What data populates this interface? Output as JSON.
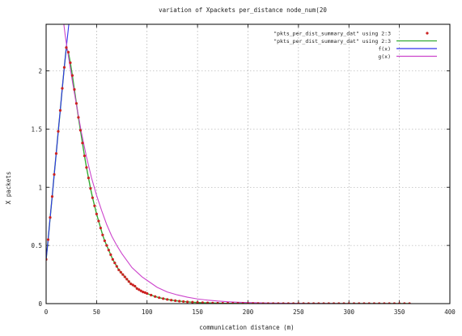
{
  "chart_data": {
    "type": "line",
    "title": "variation of Xpackets per_distance node_num(20",
    "xlabel": "communication distance (m)",
    "ylabel": "X packets",
    "xlim": [
      0,
      400
    ],
    "ylim": [
      0,
      2.4
    ],
    "xticks": [
      "0",
      "50",
      "100",
      "150",
      "200",
      "250",
      "300",
      "350",
      "400"
    ],
    "yticks": [
      "0",
      "0.5",
      "1",
      "1.5",
      "2"
    ],
    "grid": true,
    "legend_position": "top-right",
    "series": [
      {
        "name": "\"pkts_per_dist_summary_dat\" using 2:3",
        "style": "points",
        "color": "#cc2222",
        "x": [
          0,
          2,
          4,
          6,
          8,
          10,
          12,
          14,
          16,
          18,
          20,
          22,
          24,
          26,
          28,
          30,
          32,
          34,
          36,
          38,
          40,
          42,
          44,
          46,
          48,
          50,
          52,
          54,
          56,
          58,
          60,
          62,
          64,
          66,
          68,
          70,
          72,
          74,
          76,
          78,
          80,
          82,
          84,
          86,
          88,
          90,
          92,
          94,
          96,
          98,
          100,
          104,
          108,
          112,
          116,
          120,
          124,
          128,
          132,
          136,
          140,
          145,
          150,
          155,
          160,
          165,
          170,
          175,
          180,
          185,
          190,
          195,
          200,
          205,
          210,
          215,
          220,
          225,
          230,
          235,
          240,
          245,
          250,
          255,
          260,
          265,
          270,
          275,
          280,
          285,
          290,
          295,
          300,
          305,
          310,
          315,
          320,
          325,
          330,
          335,
          340,
          345,
          350,
          355,
          360
        ],
        "y": [
          0.38,
          0.55,
          0.74,
          0.92,
          1.11,
          1.29,
          1.48,
          1.66,
          1.85,
          2.03,
          2.2,
          2.16,
          2.07,
          1.96,
          1.84,
          1.72,
          1.6,
          1.49,
          1.38,
          1.27,
          1.17,
          1.08,
          0.99,
          0.91,
          0.84,
          0.77,
          0.71,
          0.65,
          0.59,
          0.54,
          0.5,
          0.46,
          0.42,
          0.38,
          0.35,
          0.32,
          0.29,
          0.27,
          0.25,
          0.23,
          0.21,
          0.19,
          0.17,
          0.16,
          0.15,
          0.13,
          0.12,
          0.11,
          0.1,
          0.095,
          0.087,
          0.073,
          0.061,
          0.051,
          0.043,
          0.036,
          0.03,
          0.025,
          0.021,
          0.018,
          0.015,
          0.012,
          0.0095,
          0.0076,
          0.0061,
          0.0049,
          0.0039,
          0.0031,
          0.0025,
          0.002,
          0.0016,
          0.0013,
          0.001,
          0.0008,
          0.0007,
          0.0005,
          0.0004,
          0.0003,
          0.0003,
          0.0002,
          0.0002,
          0.0001,
          0.0001,
          0.0001,
          0.0001,
          0,
          0,
          0,
          0,
          0,
          0,
          0,
          0,
          0,
          0,
          0,
          0,
          0,
          0,
          0,
          0,
          0,
          0,
          0,
          0
        ]
      },
      {
        "name": "\"pkts_per_dist_summary_dat\" using 2:3",
        "style": "lines",
        "color": "#33aa33",
        "x": [
          0,
          2,
          4,
          6,
          8,
          10,
          12,
          14,
          16,
          18,
          20,
          22,
          24,
          26,
          28,
          30,
          32,
          34,
          36,
          38,
          40,
          42,
          44,
          46,
          48,
          50,
          52,
          54,
          56,
          58,
          60,
          62,
          64,
          66,
          68,
          70,
          72,
          74,
          76,
          78,
          80,
          82,
          84,
          86,
          88,
          90,
          92,
          94,
          96,
          98,
          100,
          104,
          108,
          112,
          116,
          120,
          124,
          128,
          132,
          136,
          140,
          145,
          150,
          155,
          160,
          165,
          170,
          175,
          180,
          185,
          190,
          195,
          200,
          205,
          210,
          215,
          220,
          225,
          230,
          235,
          240,
          245,
          250,
          255,
          260,
          265,
          270,
          275,
          280,
          285,
          290,
          295,
          300,
          305,
          310,
          315,
          320,
          325,
          330,
          335,
          340,
          345,
          350,
          355,
          360
        ],
        "y": [
          0.38,
          0.55,
          0.74,
          0.92,
          1.11,
          1.29,
          1.48,
          1.66,
          1.85,
          2.03,
          2.2,
          2.16,
          2.07,
          1.96,
          1.84,
          1.72,
          1.6,
          1.49,
          1.38,
          1.27,
          1.17,
          1.08,
          0.99,
          0.91,
          0.84,
          0.77,
          0.71,
          0.65,
          0.59,
          0.54,
          0.5,
          0.46,
          0.42,
          0.38,
          0.35,
          0.32,
          0.29,
          0.27,
          0.25,
          0.23,
          0.21,
          0.19,
          0.17,
          0.16,
          0.15,
          0.13,
          0.12,
          0.11,
          0.1,
          0.095,
          0.087,
          0.073,
          0.061,
          0.051,
          0.043,
          0.036,
          0.03,
          0.025,
          0.021,
          0.018,
          0.015,
          0.012,
          0.0095,
          0.0076,
          0.0061,
          0.0049,
          0.0039,
          0.0031,
          0.0025,
          0.002,
          0.0016,
          0.0013,
          0.001,
          0.0008,
          0.0007,
          0.0005,
          0.0004,
          0.0003,
          0.0003,
          0.0002,
          0.0002,
          0.0001,
          0.0001,
          0.0001,
          0.0001,
          0,
          0,
          0,
          0,
          0,
          0,
          0,
          0,
          0,
          0,
          0,
          0,
          0,
          0,
          0,
          0,
          0,
          0,
          0,
          0
        ]
      },
      {
        "name": "f(x)",
        "style": "lines",
        "color": "#3333ee",
        "x": [
          0,
          2,
          4,
          6,
          8,
          10,
          12,
          14,
          16,
          18,
          20,
          21,
          22,
          23
        ],
        "y": [
          0.38,
          0.55,
          0.74,
          0.92,
          1.11,
          1.29,
          1.48,
          1.66,
          1.85,
          2.03,
          2.2,
          2.28,
          2.36,
          2.44
        ]
      },
      {
        "name": "g(x)",
        "style": "lines",
        "color": "#cc44cc",
        "x": [
          17,
          18,
          19,
          20,
          22,
          24,
          26,
          28,
          30,
          35,
          40,
          45,
          50,
          55,
          60,
          65,
          70,
          75,
          80,
          85,
          90,
          95,
          100,
          110,
          120,
          130,
          140,
          150,
          160,
          170,
          180,
          190,
          200,
          220,
          240,
          260,
          280,
          300,
          320,
          340,
          360
        ],
        "y": [
          2.44,
          2.37,
          2.3,
          2.24,
          2.13,
          2.02,
          1.91,
          1.81,
          1.71,
          1.47,
          1.26,
          1.08,
          0.93,
          0.8,
          0.68,
          0.58,
          0.5,
          0.43,
          0.37,
          0.31,
          0.27,
          0.23,
          0.2,
          0.14,
          0.1,
          0.075,
          0.055,
          0.04,
          0.03,
          0.022,
          0.016,
          0.012,
          0.009,
          0.005,
          0.003,
          0.0017,
          0.001,
          0.0005,
          0.0003,
          0.0002,
          0.0001
        ]
      }
    ]
  }
}
